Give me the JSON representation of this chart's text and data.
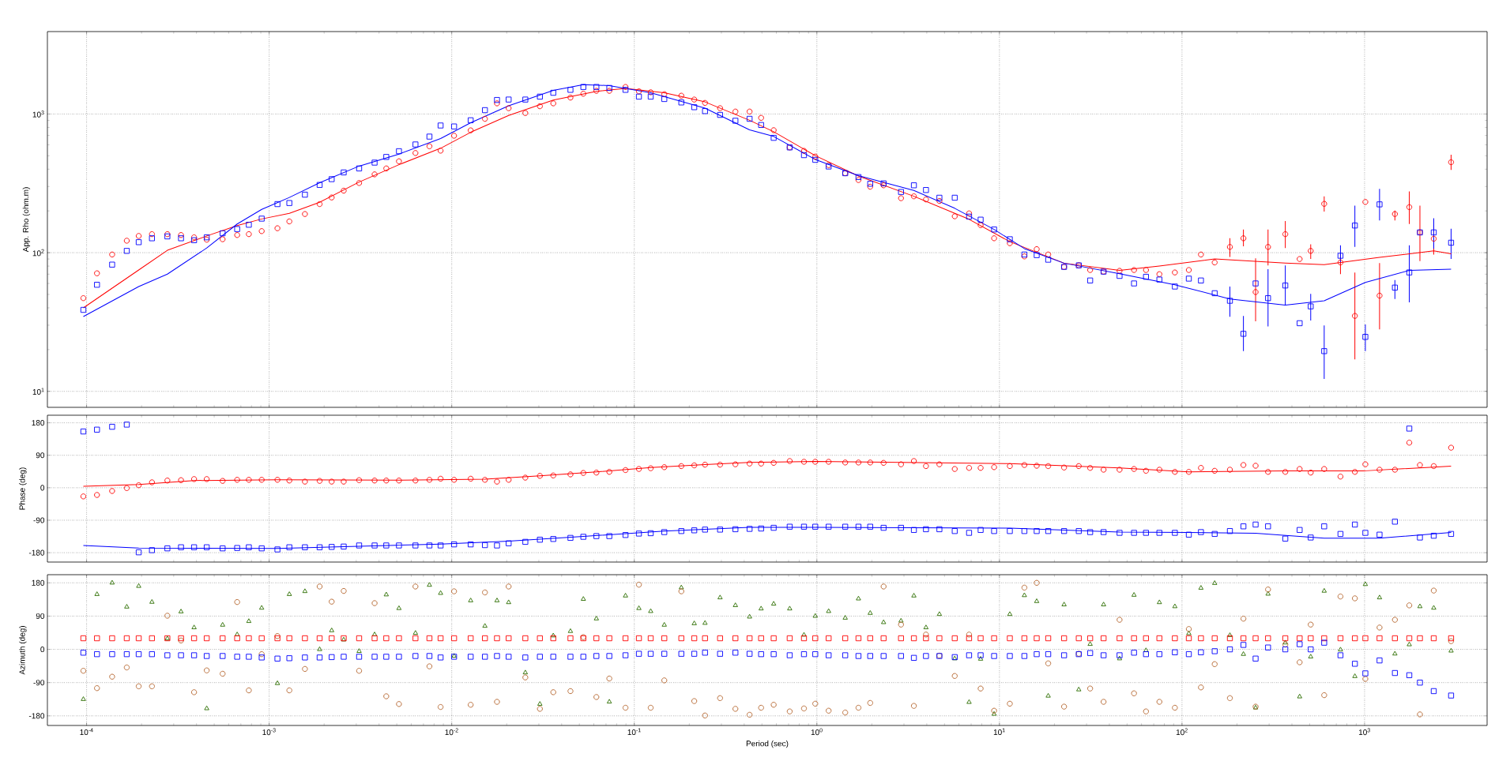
{
  "chart_data": [
    {
      "type": "scatter",
      "ylabel": "App. Rho (ohm.m)",
      "log": "xy",
      "grid": true,
      "tick_labels": "y",
      "xlim": [
        6.1e-05,
        4690
      ],
      "ylim": [
        7.67,
        3930
      ],
      "xticks": [
        {
          "value": 0.0001,
          "label": null
        },
        {
          "value": 0.001,
          "label": null
        },
        {
          "value": 0.01,
          "label": null
        },
        {
          "value": 0.1,
          "label": null
        },
        {
          "value": 1,
          "label": null
        },
        {
          "value": 10,
          "label": null
        },
        {
          "value": 100,
          "label": null
        },
        {
          "value": 1000,
          "label": null
        }
      ],
      "yticks": [
        {
          "value": 10,
          "label": "10$^{1}$"
        },
        {
          "value": 100,
          "label": "10$^{2}$"
        },
        {
          "value": 1000,
          "label": "10$^{3}$"
        }
      ],
      "x": [
        9.6e-05,
        0.000114,
        0.000138,
        0.000166,
        0.000193,
        0.000228,
        0.000277,
        0.000329,
        0.000388,
        0.000455,
        0.000556,
        0.000668,
        0.000774,
        0.00091,
        0.00111,
        0.00129,
        0.00157,
        0.00189,
        0.0022,
        0.00256,
        0.00311,
        0.00378,
        0.00438,
        0.00514,
        0.00633,
        0.00755,
        0.00869,
        0.0103,
        0.0127,
        0.0152,
        0.0177,
        0.0205,
        0.0253,
        0.0304,
        0.036,
        0.0447,
        0.0526,
        0.062,
        0.073,
        0.0895,
        0.106,
        0.123,
        0.146,
        0.181,
        0.213,
        0.244,
        0.295,
        0.358,
        0.428,
        0.495,
        0.58,
        0.71,
        0.85,
        0.98,
        1.16,
        1.43,
        1.69,
        1.96,
        2.32,
        2.89,
        3.4,
        3.96,
        4.69,
        5.69,
        6.82,
        7.89,
        9.35,
        11.4,
        13.7,
        16,
        18.5,
        22.6,
        27.2,
        31.4,
        37.2,
        45.5,
        54.6,
        63.5,
        75.2,
        91.4,
        109,
        127,
        151,
        183,
        217,
        253,
        296,
        368,
        441,
        507,
        601,
        738,
        885,
        1010,
        1208,
        1466,
        1758,
        2010,
        2393,
        2978
      ],
      "series": [
        {
          "color": "#ff0000",
          "marker": "circle",
          "values": [
            47,
            71,
            97,
            122,
            132,
            136,
            136,
            134,
            129,
            124,
            125,
            134,
            136,
            143,
            150,
            168,
            190,
            224,
            250,
            280,
            318,
            367,
            405,
            456,
            523,
            585,
            544,
            697,
            762,
            923,
            1193,
            1101,
            1016,
            1137,
            1193,
            1313,
            1400,
            1469,
            1469,
            1566,
            1457,
            1434,
            1389,
            1355,
            1271,
            1202,
            1101,
            1041,
            1041,
            938,
            764,
            574,
            542,
            493,
            428,
            374,
            334,
            299,
            306,
            247,
            255,
            242,
            236,
            183,
            192,
            158,
            127,
            117,
            94,
            106,
            97,
            79,
            81,
            75,
            73,
            74,
            75,
            75,
            70,
            72,
            75,
            97,
            85,
            110,
            127,
            52,
            110,
            136,
            90,
            103,
            225,
            85,
            35,
            232,
            49,
            190,
            213,
            140,
            126,
            449
          ],
          "errors": [
            null,
            null,
            null,
            null,
            null,
            null,
            null,
            null,
            null,
            null,
            null,
            null,
            null,
            null,
            null,
            null,
            null,
            null,
            null,
            null,
            null,
            null,
            null,
            null,
            null,
            null,
            null,
            null,
            null,
            null,
            null,
            null,
            null,
            null,
            null,
            null,
            null,
            null,
            null,
            null,
            null,
            null,
            null,
            null,
            null,
            null,
            null,
            null,
            null,
            null,
            null,
            null,
            null,
            null,
            null,
            null,
            null,
            null,
            null,
            null,
            null,
            null,
            null,
            null,
            null,
            null,
            null,
            null,
            null,
            null,
            null,
            null,
            null,
            null,
            null,
            null,
            null,
            null,
            null,
            null,
            null,
            null,
            null,
            [
              93,
              127
            ],
            [
              111,
              147
            ],
            [
              32,
              91
            ],
            [
              81,
              147
            ],
            [
              108,
              169
            ],
            null,
            [
              90,
              115
            ],
            [
              198,
              255
            ],
            [
              70,
              98
            ],
            [
              17,
              72
            ],
            null,
            [
              28,
              84
            ],
            [
              171,
              201
            ],
            [
              161,
              276
            ],
            [
              87,
              218
            ],
            [
              97,
              158
            ],
            [
              395,
              509
            ]
          ]
        },
        {
          "color": "#0000ff",
          "marker": "square",
          "values": [
            38.7,
            58.7,
            82,
            103,
            119,
            127,
            131,
            127,
            123,
            129,
            138,
            148,
            159,
            176,
            224,
            228,
            262,
            308,
            339,
            379,
            405,
            446,
            490,
            539,
            603,
            687,
            826,
            813,
            901,
            1066,
            1262,
            1271,
            1271,
            1334,
            1422,
            1493,
            1566,
            1566,
            1541,
            1493,
            1334,
            1334,
            1282,
            1211,
            1119,
            1049,
            985,
            894,
            923,
            833,
            673,
            574,
            505,
            467,
            418,
            374,
            351,
            314,
            316,
            274,
            306,
            283,
            249,
            249,
            182,
            173,
            147,
            125,
            97,
            96,
            89,
            79,
            81,
            63,
            73,
            68,
            60,
            67,
            64,
            57,
            65,
            63,
            51,
            45,
            26,
            60,
            47,
            58,
            31,
            41,
            19.5,
            95,
            157,
            24.7,
            223,
            56,
            72,
            140,
            140,
            118
          ],
          "errors": [
            null,
            null,
            null,
            null,
            null,
            null,
            null,
            null,
            null,
            null,
            null,
            null,
            null,
            null,
            null,
            null,
            null,
            null,
            null,
            null,
            null,
            null,
            null,
            null,
            null,
            null,
            null,
            null,
            null,
            null,
            null,
            null,
            null,
            null,
            null,
            null,
            null,
            null,
            null,
            null,
            null,
            null,
            null,
            null,
            null,
            null,
            null,
            null,
            null,
            null,
            null,
            null,
            null,
            null,
            null,
            null,
            null,
            null,
            null,
            null,
            null,
            null,
            null,
            null,
            null,
            null,
            null,
            null,
            null,
            null,
            null,
            null,
            null,
            null,
            null,
            null,
            null,
            null,
            null,
            null,
            null,
            null,
            null,
            [
              34.5,
              57
            ],
            [
              19.5,
              35
            ],
            null,
            [
              29.4,
              76
            ],
            [
              42,
              81
            ],
            null,
            [
              32.4,
              50.5
            ],
            [
              12.3,
              29.9
            ],
            [
              84,
              113
            ],
            [
              110,
              218
            ],
            [
              19.5,
              30.4
            ],
            [
              171,
              288
            ],
            [
              46.3,
              63.5
            ],
            [
              43.8,
              113
            ],
            null,
            [
              107,
              177
            ],
            [
              90,
              149
            ]
          ]
        },
        {
          "type": "line",
          "color": "#ff0000",
          "x": [
            9.6e-05,
            0.000193,
            0.000277,
            0.000455,
            0.000668,
            0.00091,
            0.00129,
            0.00189,
            0.00311,
            0.00514,
            0.00869,
            0.0127,
            0.0205,
            0.036,
            0.062,
            0.0895,
            0.146,
            0.244,
            0.428,
            0.58,
            0.98,
            1.69,
            3.4,
            6.82,
            11.4,
            22.6,
            45.5,
            75.2,
            151,
            368,
            601,
            1208,
            2393,
            2978
          ],
          "values": [
            40,
            75,
            104,
            132,
            157,
            175,
            192,
            231,
            323,
            431,
            566,
            738,
            977,
            1261,
            1456,
            1528,
            1423,
            1222,
            901,
            745,
            501,
            357,
            255,
            174,
            120,
            84,
            74.5,
            80,
            90,
            84,
            82,
            92.5,
            103,
            98
          ]
        },
        {
          "type": "line",
          "color": "#0000ff",
          "x": [
            9.6e-05,
            0.000193,
            0.000277,
            0.000455,
            0.000668,
            0.00091,
            0.00129,
            0.00189,
            0.00311,
            0.00514,
            0.00869,
            0.0127,
            0.0205,
            0.036,
            0.0526,
            0.073,
            0.123,
            0.244,
            0.428,
            0.58,
            0.98,
            1.69,
            3.4,
            5.69,
            9.35,
            13.7,
            22.6,
            45.5,
            91.4,
            183,
            368,
            601,
            1010,
            1758,
            2978
          ],
          "values": [
            34.6,
            57,
            70,
            108,
            161,
            205,
            250,
            319,
            421,
            514,
            665,
            865,
            1146,
            1479,
            1629,
            1603,
            1423,
            1101,
            768,
            689,
            470,
            359,
            281,
            209,
            147,
            107,
            84,
            70.5,
            58.7,
            46.4,
            41.8,
            45,
            61,
            74.5,
            76
          ]
        }
      ]
    },
    {
      "type": "scatter",
      "ylabel": "Phase (deg)",
      "log": "x",
      "grid": true,
      "tick_labels": "y",
      "xlim": [
        6.1e-05,
        4690
      ],
      "ylim": [
        -206,
        201
      ],
      "xticks": [
        {
          "value": 0.0001,
          "label": null
        },
        {
          "value": 0.001,
          "label": null
        },
        {
          "value": 0.01,
          "label": null
        },
        {
          "value": 0.1,
          "label": null
        },
        {
          "value": 1,
          "label": null
        },
        {
          "value": 10,
          "label": null
        },
        {
          "value": 100,
          "label": null
        },
        {
          "value": 1000,
          "label": null
        }
      ],
      "yticks": [
        -180,
        -90,
        0,
        90,
        180
      ],
      "x": [
        9.6e-05,
        0.000114,
        0.000138,
        0.000166,
        0.000193,
        0.000228,
        0.000277,
        0.000329,
        0.000388,
        0.000455,
        0.000556,
        0.000668,
        0.000774,
        0.00091,
        0.00111,
        0.00129,
        0.00157,
        0.00189,
        0.0022,
        0.00256,
        0.00311,
        0.00378,
        0.00438,
        0.00514,
        0.00633,
        0.00755,
        0.00869,
        0.0103,
        0.0127,
        0.0152,
        0.0177,
        0.0205,
        0.0253,
        0.0304,
        0.036,
        0.0447,
        0.0526,
        0.062,
        0.073,
        0.0895,
        0.106,
        0.123,
        0.146,
        0.181,
        0.213,
        0.244,
        0.295,
        0.358,
        0.428,
        0.495,
        0.58,
        0.71,
        0.85,
        0.98,
        1.16,
        1.43,
        1.69,
        1.96,
        2.32,
        2.89,
        3.4,
        3.96,
        4.69,
        5.69,
        6.82,
        7.89,
        9.35,
        11.4,
        13.7,
        16,
        18.5,
        22.6,
        27.2,
        31.4,
        37.2,
        45.5,
        54.6,
        63.5,
        75.2,
        91.4,
        109,
        127,
        151,
        183,
        217,
        253,
        296,
        368,
        441,
        507,
        601,
        738,
        885,
        1010,
        1208,
        1466,
        1758,
        2010,
        2393,
        2978
      ],
      "series": [
        {
          "color": "#ff0000",
          "marker": "circle",
          "values": [
            -24,
            -20,
            -9,
            -1,
            7,
            15,
            20,
            21,
            24,
            24,
            19,
            22,
            22,
            22,
            22,
            20,
            17,
            19,
            17,
            17,
            21,
            20,
            20,
            20,
            20,
            22,
            25,
            22,
            25,
            22,
            17,
            22,
            28,
            33,
            34,
            37,
            41,
            42,
            44,
            49,
            52,
            54,
            57,
            60,
            62,
            64,
            64,
            65,
            67,
            67,
            69,
            74,
            72,
            72,
            72,
            70,
            70,
            70,
            69,
            65,
            74,
            60,
            65,
            52,
            55,
            55,
            57,
            60,
            63,
            61,
            60,
            56,
            60,
            55,
            50,
            50,
            52,
            47,
            50,
            44,
            44,
            55,
            47,
            50,
            63,
            61,
            44,
            44,
            52,
            42,
            52,
            31,
            44,
            65,
            50,
            50,
            125,
            63,
            60,
            111
          ]
        },
        {
          "color": "#0000ff",
          "marker": "square",
          "values": [
            156,
            161,
            169,
            175,
            -179,
            -173,
            -168,
            -165,
            -165,
            -165,
            -168,
            -167,
            -165,
            -168,
            -171,
            -165,
            -165,
            -165,
            -164,
            -163,
            -160,
            -160,
            -160,
            -160,
            -160,
            -160,
            -160,
            -157,
            -157,
            -159,
            -160,
            -154,
            -150,
            -144,
            -142,
            -139,
            -136,
            -134,
            -134,
            -131,
            -127,
            -126,
            -123,
            -120,
            -118,
            -116,
            -116,
            -115,
            -114,
            -113,
            -111,
            -108,
            -108,
            -108,
            -108,
            -108,
            -108,
            -108,
            -111,
            -111,
            -117,
            -115,
            -115,
            -120,
            -125,
            -117,
            -120,
            -120,
            -120,
            -120,
            -120,
            -120,
            -120,
            -123,
            -123,
            -125,
            -125,
            -125,
            -125,
            -125,
            -130,
            -123,
            -128,
            -120,
            -107,
            -102,
            -107,
            -141,
            -117,
            -138,
            -107,
            -128,
            -102,
            -125,
            -130,
            -94,
            164,
            -138,
            -133,
            -128
          ]
        },
        {
          "type": "line",
          "color": "#ff0000",
          "x": [
            9.6e-05,
            0.000193,
            0.000388,
            0.00111,
            0.00514,
            0.0152,
            0.0304,
            0.062,
            0.123,
            0.244,
            0.428,
            0.98,
            11.4,
            45.5,
            109,
            368,
            1010,
            2978
          ],
          "values": [
            4,
            9,
            20,
            22,
            21,
            24,
            33,
            44,
            56,
            64,
            70,
            73,
            67,
            55,
            44,
            47,
            47,
            60
          ]
        },
        {
          "type": "line",
          "color": "#0000ff",
          "x": [
            9.6e-05,
            0.000193,
            0.00111,
            0.00869,
            0.0205,
            0.0526,
            0.146,
            0.428,
            0.98,
            11.4,
            45.5,
            109,
            253,
            601,
            1208,
            2978
          ],
          "values": [
            -160,
            -167,
            -168,
            -156,
            -148,
            -135,
            -120,
            -110,
            -110,
            -112,
            -123,
            -124,
            -126,
            -140,
            -140,
            -124
          ]
        }
      ]
    },
    {
      "type": "scatter",
      "xlabel": "Period (sec)",
      "ylabel": "Azimuth (deg)",
      "log": "x",
      "grid": true,
      "xlim": [
        6.1e-05,
        4690
      ],
      "ylim": [
        -206,
        202
      ],
      "xticks": [
        {
          "value": 0.0001,
          "label": "10$^{-4}$"
        },
        {
          "value": 0.001,
          "label": "10$^{-3}$"
        },
        {
          "value": 0.01,
          "label": "10$^{-2}$"
        },
        {
          "value": 0.1,
          "label": "10$^{-1}$"
        },
        {
          "value": 1,
          "label": "10$^{0}$"
        },
        {
          "value": 10,
          "label": "10$^{1}$"
        },
        {
          "value": 100,
          "label": "10$^{2}$"
        },
        {
          "value": 1000,
          "label": "10$^{3}$"
        }
      ],
      "yticks": [
        -180,
        -90,
        0,
        90,
        180
      ],
      "x": [
        9.6e-05,
        0.000114,
        0.000138,
        0.000166,
        0.000193,
        0.000228,
        0.000277,
        0.000329,
        0.000388,
        0.000455,
        0.000556,
        0.000668,
        0.000774,
        0.00091,
        0.00111,
        0.00129,
        0.00157,
        0.00189,
        0.0022,
        0.00256,
        0.00311,
        0.00378,
        0.00438,
        0.00514,
        0.00633,
        0.00755,
        0.00869,
        0.0103,
        0.0127,
        0.0152,
        0.0177,
        0.0205,
        0.0253,
        0.0304,
        0.036,
        0.0447,
        0.0526,
        0.062,
        0.073,
        0.0895,
        0.106,
        0.123,
        0.146,
        0.181,
        0.213,
        0.244,
        0.295,
        0.358,
        0.428,
        0.495,
        0.58,
        0.71,
        0.85,
        0.98,
        1.16,
        1.43,
        1.69,
        1.96,
        2.32,
        2.89,
        3.4,
        3.96,
        4.69,
        5.69,
        6.82,
        7.89,
        9.35,
        11.4,
        13.7,
        16,
        18.5,
        22.6,
        27.2,
        31.4,
        37.2,
        45.5,
        54.6,
        63.5,
        75.2,
        91.4,
        109,
        127,
        151,
        183,
        217,
        253,
        296,
        368,
        441,
        507,
        601,
        738,
        885,
        1010,
        1208,
        1466,
        1758,
        2010,
        2393,
        2978
      ],
      "series": [
        {
          "color": "#2d6e00",
          "marker": "triangle",
          "values": [
            -135,
            149,
            180,
            115,
            171,
            128,
            29,
            102,
            59,
            -160,
            66,
            40,
            76,
            112,
            -92,
            149,
            157,
            0,
            51,
            26,
            -5,
            40,
            148,
            111,
            44,
            174,
            152,
            -18,
            132,
            63,
            132,
            127,
            -63,
            -148,
            37,
            49,
            136,
            83,
            -142,
            145,
            111,
            103,
            66,
            167,
            70,
            71,
            140,
            119,
            88,
            110,
            123,
            110,
            39,
            90,
            103,
            85,
            137,
            98,
            73,
            77,
            145,
            59,
            95,
            -25,
            -143,
            -26,
            -175,
            95,
            146,
            130,
            -126,
            121,
            -109,
            14,
            121,
            -25,
            147,
            -3,
            127,
            116,
            43,
            166,
            179,
            38,
            -13,
            -158,
            150,
            18,
            -128,
            -20,
            158,
            -1,
            -73,
            176,
            140,
            -12,
            13,
            116,
            112,
            -4
          ]
        },
        {
          "color": "#b4642d",
          "marker": "circle",
          "values": [
            -58,
            -105,
            -74,
            -49,
            -100,
            -100,
            91,
            24,
            -116,
            -57,
            -66,
            128,
            -111,
            -13,
            36,
            -111,
            -53,
            170,
            129,
            158,
            -58,
            125,
            -127,
            -148,
            170,
            -46,
            -156,
            157,
            -150,
            154,
            -142,
            170,
            -76,
            -161,
            -116,
            -113,
            33,
            -129,
            -79,
            -158,
            175,
            -158,
            -84,
            157,
            -140,
            -179,
            -132,
            -161,
            -177,
            -158,
            -150,
            -168,
            -160,
            -147,
            -166,
            -171,
            -158,
            -145,
            170,
            67,
            -153,
            40,
            -17,
            -72,
            40,
            -106,
            -166,
            -147,
            167,
            180,
            -38,
            -155,
            -12,
            -106,
            -142,
            80,
            -119,
            -168,
            -142,
            -158,
            55,
            -103,
            -40,
            -132,
            83,
            -155,
            162,
            13,
            -35,
            67,
            -124,
            143,
            138,
            -80,
            59,
            80,
            119,
            -176,
            159,
            22
          ]
        },
        {
          "color": "#ff0000",
          "marker": "square",
          "values": [
            30,
            30,
            30,
            30,
            30,
            30,
            30,
            30,
            30,
            30,
            30,
            30,
            30,
            30,
            30,
            30,
            30,
            30,
            30,
            30,
            30,
            30,
            30,
            30,
            30,
            30,
            30,
            30,
            30,
            30,
            30,
            30,
            30,
            30,
            30,
            30,
            30,
            30,
            30,
            30,
            30,
            30,
            30,
            30,
            30,
            30,
            30,
            30,
            30,
            30,
            30,
            30,
            30,
            30,
            30,
            30,
            30,
            30,
            30,
            30,
            30,
            30,
            30,
            30,
            30,
            30,
            30,
            30,
            30,
            30,
            30,
            30,
            30,
            30,
            30,
            30,
            30,
            30,
            30,
            30,
            30,
            30,
            30,
            30,
            30,
            30,
            30,
            30,
            30,
            30,
            30,
            30,
            30,
            30,
            30,
            30,
            30,
            30,
            30,
            30
          ]
        },
        {
          "color": "#0000ff",
          "marker": "square",
          "values": [
            -9,
            -13,
            -13,
            -13,
            -13,
            -13,
            -16,
            -16,
            -16,
            -18,
            -18,
            -20,
            -20,
            -22,
            -25,
            -24,
            -22,
            -22,
            -21,
            -20,
            -20,
            -20,
            -20,
            -20,
            -18,
            -18,
            -22,
            -20,
            -20,
            -20,
            -18,
            -20,
            -22,
            -20,
            -20,
            -20,
            -20,
            -18,
            -18,
            -16,
            -12,
            -12,
            -12,
            -12,
            -12,
            -9,
            -12,
            -9,
            -12,
            -13,
            -13,
            -16,
            -13,
            -13,
            -16,
            -16,
            -18,
            -18,
            -18,
            -18,
            -23,
            -18,
            -18,
            -21,
            -16,
            -16,
            -18,
            -18,
            -18,
            -13,
            -13,
            -16,
            -13,
            -10,
            -16,
            -16,
            -9,
            -13,
            -13,
            -8,
            -13,
            -8,
            -5,
            0,
            12,
            -25,
            5,
            0,
            14,
            0,
            18,
            -16,
            -39,
            -65,
            -30,
            -64,
            -70,
            -90,
            -113,
            -125
          ]
        }
      ]
    }
  ]
}
